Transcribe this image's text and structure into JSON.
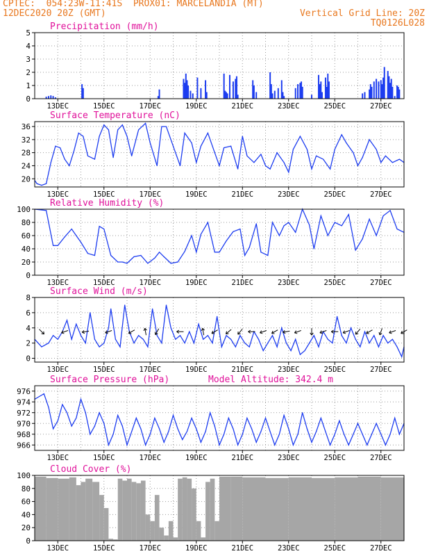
{
  "header": {
    "line1_left": "CPTEC:  054:23W-11:41S  PROX01: MARCELANDIA (MT)",
    "line2_left": "12DEC2020 20Z (GMT)",
    "line2_right": "Vertical Grid Line: 20Z",
    "line3_right": "TQ0126L028"
  },
  "colors": {
    "header": "#e8771e",
    "title": "#e0109a",
    "series": "#1c3cf0",
    "cloud": "#a6a6a6",
    "wind_arrow": "#000000"
  },
  "model_altitude": "Model Altitude: 342.4 m",
  "x_ticks": [
    "13DEC",
    "15DEC",
    "17DEC",
    "19DEC",
    "21DEC",
    "23DEC",
    "25DEC",
    "27DEC"
  ],
  "chart_data": [
    {
      "id": "precip",
      "type": "bar",
      "title": "Precipitation (mm/h)",
      "ylim": [
        0,
        5
      ],
      "yticks": [
        "0",
        "1",
        "2",
        "3",
        "4",
        "5"
      ],
      "x_days": [
        0.5,
        0.6,
        0.7,
        0.8,
        0.9,
        2.05,
        2.1,
        5.35,
        5.4,
        6.45,
        6.5,
        6.55,
        6.6,
        6.65,
        6.75,
        6.85,
        7.05,
        7.2,
        7.4,
        7.45,
        8.2,
        8.25,
        8.3,
        8.35,
        8.45,
        8.6,
        8.7,
        8.75,
        8.8,
        9.45,
        9.5,
        9.6,
        10.2,
        10.25,
        10.3,
        10.4,
        10.55,
        10.7,
        10.75,
        10.8,
        11.3,
        11.4,
        11.5,
        11.55,
        11.6,
        12.0,
        12.3,
        12.35,
        12.4,
        12.45,
        12.6,
        12.65,
        12.7,
        12.75,
        14.2,
        14.3,
        14.5,
        14.55,
        14.6,
        14.7,
        14.8,
        14.9,
        15.0,
        15.05,
        15.1,
        15.15,
        15.3,
        15.35,
        15.4,
        15.45,
        15.5,
        15.6,
        15.7,
        15.75,
        15.8
      ],
      "values": [
        0.15,
        0.2,
        0.25,
        0.2,
        0.1,
        1.1,
        0.8,
        0.2,
        0.7,
        1.5,
        1.2,
        1.9,
        1.4,
        1.0,
        0.6,
        0.4,
        1.6,
        0.8,
        1.4,
        0.5,
        1.9,
        0.6,
        0.5,
        0.4,
        1.8,
        1.3,
        1.5,
        1.7,
        0.3,
        1.4,
        1.0,
        0.5,
        2.0,
        1.1,
        0.4,
        0.6,
        0.8,
        1.4,
        0.5,
        0.2,
        0.8,
        1.1,
        1.2,
        1.3,
        0.9,
        0.3,
        1.8,
        1.1,
        1.3,
        0.5,
        1.6,
        0.9,
        1.9,
        1.3,
        0.4,
        0.5,
        0.7,
        1.1,
        0.9,
        1.3,
        1.5,
        1.3,
        1.4,
        1.1,
        1.6,
        2.4,
        2.1,
        1.7,
        1.2,
        1.5,
        0.9,
        0.2,
        1.0,
        0.9,
        0.7
      ]
    },
    {
      "id": "temp",
      "type": "line",
      "title": "Surface Temperature (nC)",
      "ylim": [
        17.5,
        37.5
      ],
      "yticks": [
        "20",
        "24",
        "28",
        "32",
        "36"
      ],
      "x_days": [
        0,
        0.1,
        0.3,
        0.5,
        0.7,
        0.9,
        1.1,
        1.3,
        1.5,
        1.7,
        1.9,
        2.1,
        2.3,
        2.6,
        2.8,
        3.0,
        3.2,
        3.4,
        3.6,
        3.8,
        4.0,
        4.2,
        4.5,
        4.8,
        5.0,
        5.3,
        5.5,
        5.7,
        6.0,
        6.3,
        6.5,
        6.8,
        7.0,
        7.2,
        7.5,
        7.8,
        8.0,
        8.2,
        8.5,
        8.8,
        9.0,
        9.2,
        9.5,
        9.8,
        10.0,
        10.2,
        10.5,
        10.8,
        11.0,
        11.2,
        11.5,
        11.8,
        12.0,
        12.2,
        12.5,
        12.8,
        13.0,
        13.3,
        13.5,
        13.8,
        14.0,
        14.2,
        14.5,
        14.8,
        15.0,
        15.2,
        15.5,
        15.8,
        16.0
      ],
      "values": [
        19.5,
        18.5,
        18.0,
        18.5,
        25.0,
        30.0,
        29.5,
        26.0,
        24.0,
        28.5,
        34.0,
        33.0,
        27.0,
        26.0,
        33.0,
        36.5,
        35.0,
        26.5,
        35.0,
        36.5,
        33.0,
        27.0,
        35.0,
        37.0,
        31.0,
        24.0,
        36.0,
        36.0,
        30.0,
        24.0,
        34.0,
        31.0,
        25.0,
        30.0,
        34.0,
        28.0,
        24.0,
        29.5,
        30.0,
        23.0,
        33.0,
        27.0,
        25.0,
        27.5,
        24.0,
        23.0,
        28.0,
        25.0,
        22.0,
        29.0,
        33.0,
        29.0,
        23.0,
        27.0,
        26.0,
        23.0,
        29.0,
        33.5,
        31.0,
        28.0,
        24.0,
        26.5,
        32.0,
        29.0,
        25.0,
        27.0,
        25.0,
        26.0,
        25.0
      ]
    },
    {
      "id": "rh",
      "type": "line",
      "title": "Relative Humidity (%)",
      "ylim": [
        0,
        100
      ],
      "yticks": [
        "0",
        "20",
        "40",
        "60",
        "80",
        "100"
      ],
      "x_days": [
        0,
        0.5,
        0.8,
        1.0,
        1.3,
        1.6,
        1.8,
        2.0,
        2.3,
        2.6,
        2.8,
        3.0,
        3.3,
        3.6,
        3.8,
        4.0,
        4.3,
        4.6,
        4.9,
        5.2,
        5.4,
        5.6,
        5.9,
        6.2,
        6.5,
        6.8,
        7.0,
        7.2,
        7.5,
        7.8,
        8.0,
        8.3,
        8.6,
        8.9,
        9.1,
        9.3,
        9.6,
        9.8,
        10.1,
        10.3,
        10.6,
        10.8,
        11.0,
        11.3,
        11.6,
        11.9,
        12.1,
        12.4,
        12.7,
        13.0,
        13.3,
        13.6,
        13.9,
        14.2,
        14.5,
        14.8,
        15.1,
        15.4,
        15.7,
        16.0
      ],
      "values": [
        100,
        98,
        45,
        45,
        58,
        70,
        60,
        50,
        33,
        30,
        74,
        70,
        30,
        20,
        20,
        18,
        28,
        30,
        18,
        26,
        35,
        28,
        18,
        20,
        36,
        60,
        35,
        62,
        80,
        35,
        35,
        52,
        66,
        70,
        30,
        42,
        78,
        35,
        30,
        80,
        60,
        75,
        80,
        65,
        100,
        76,
        40,
        90,
        60,
        80,
        75,
        92,
        38,
        55,
        85,
        60,
        90,
        98,
        70,
        65
      ]
    },
    {
      "id": "wind",
      "type": "line",
      "title": "Surface Wind (m/s)",
      "ylim": [
        -0.5,
        8
      ],
      "yticks": [
        "0",
        "2",
        "4",
        "6",
        "8"
      ],
      "x_days": [
        0,
        0.3,
        0.6,
        0.8,
        1.0,
        1.2,
        1.4,
        1.6,
        1.8,
        2.0,
        2.2,
        2.4,
        2.6,
        2.8,
        3.0,
        3.2,
        3.3,
        3.5,
        3.7,
        3.9,
        4.1,
        4.3,
        4.5,
        4.7,
        4.9,
        5.1,
        5.3,
        5.5,
        5.7,
        5.9,
        6.1,
        6.3,
        6.5,
        6.7,
        6.9,
        7.1,
        7.3,
        7.5,
        7.7,
        7.9,
        8.1,
        8.3,
        8.5,
        8.7,
        8.9,
        9.1,
        9.3,
        9.5,
        9.7,
        9.9,
        10.1,
        10.3,
        10.5,
        10.7,
        10.9,
        11.1,
        11.3,
        11.5,
        11.7,
        11.9,
        12.1,
        12.3,
        12.5,
        12.7,
        12.9,
        13.1,
        13.3,
        13.5,
        13.7,
        13.9,
        14.1,
        14.3,
        14.5,
        14.7,
        14.9,
        15.1,
        15.3,
        15.5,
        15.7,
        15.9,
        16.0
      ],
      "values": [
        2.5,
        1.5,
        2.0,
        3.0,
        2.5,
        3.5,
        5.0,
        2.5,
        4.5,
        3.0,
        2.0,
        6.0,
        2.5,
        1.5,
        2.0,
        4.0,
        6.5,
        2.5,
        1.5,
        7.0,
        3.5,
        2.0,
        3.0,
        2.5,
        1.5,
        6.5,
        3.0,
        2.0,
        7.0,
        4.0,
        2.5,
        3.0,
        2.0,
        3.5,
        2.0,
        4.5,
        2.5,
        3.0,
        2.0,
        5.5,
        1.5,
        3.0,
        2.5,
        1.5,
        3.0,
        2.0,
        1.5,
        3.5,
        2.5,
        1.0,
        2.0,
        3.0,
        1.5,
        4.0,
        2.0,
        1.0,
        2.5,
        0.5,
        1.0,
        2.0,
        3.0,
        1.5,
        3.5,
        2.5,
        2.0,
        5.5,
        3.0,
        2.0,
        4.0,
        2.5,
        1.5,
        3.5,
        2.0,
        3.0,
        1.5,
        3.0,
        2.0,
        2.5,
        1.5,
        0.2,
        1.5
      ],
      "arrow_x_days": [
        0.3,
        1.3,
        2.2,
        3.2,
        4.2,
        4.8,
        5.3,
        6.3,
        7.3,
        7.8,
        8.4,
        8.9,
        9.4,
        9.9,
        10.4,
        10.9,
        11.4,
        12.0,
        12.5,
        13.0,
        13.5,
        14.0,
        14.5,
        15.0,
        15.5,
        16.0
      ],
      "arrow_dir_deg": [
        315,
        200,
        190,
        200,
        210,
        100,
        240,
        180,
        100,
        210,
        220,
        230,
        180,
        200,
        210,
        190,
        200,
        270,
        200,
        180,
        200,
        230,
        210,
        250,
        200,
        210
      ]
    },
    {
      "id": "pres",
      "type": "line",
      "title": "Surface Pressure (hPa)",
      "ylim": [
        965,
        977
      ],
      "yticks": [
        "966",
        "968",
        "970",
        "972",
        "974",
        "976"
      ],
      "x_days": [
        0,
        0.2,
        0.4,
        0.6,
        0.8,
        1.0,
        1.2,
        1.4,
        1.6,
        1.8,
        2.0,
        2.2,
        2.4,
        2.6,
        2.8,
        3.0,
        3.2,
        3.4,
        3.6,
        3.8,
        4.0,
        4.2,
        4.4,
        4.6,
        4.8,
        5.0,
        5.2,
        5.4,
        5.6,
        5.8,
        6.0,
        6.2,
        6.4,
        6.6,
        6.8,
        7.0,
        7.2,
        7.4,
        7.6,
        7.8,
        8.0,
        8.2,
        8.4,
        8.6,
        8.8,
        9.0,
        9.2,
        9.4,
        9.6,
        9.8,
        10.0,
        10.2,
        10.4,
        10.6,
        10.8,
        11.0,
        11.2,
        11.4,
        11.6,
        11.8,
        12.0,
        12.2,
        12.4,
        12.6,
        12.8,
        13.0,
        13.2,
        13.4,
        13.6,
        13.8,
        14.0,
        14.2,
        14.4,
        14.6,
        14.8,
        15.0,
        15.2,
        15.4,
        15.6,
        15.8,
        16.0
      ],
      "values": [
        974.5,
        975.0,
        975.5,
        973.0,
        969.0,
        970.5,
        973.5,
        972.0,
        969.5,
        971.0,
        974.5,
        972.0,
        968.0,
        969.5,
        972.0,
        970.0,
        966.0,
        968.0,
        971.5,
        969.5,
        966.0,
        968.5,
        971.0,
        969.0,
        966.0,
        968.0,
        971.0,
        969.0,
        966.5,
        968.5,
        971.5,
        969.0,
        967.0,
        968.5,
        971.0,
        969.0,
        966.5,
        968.5,
        972.0,
        969.5,
        966.0,
        968.0,
        971.0,
        969.0,
        966.0,
        968.0,
        971.0,
        969.0,
        966.5,
        968.5,
        971.0,
        968.5,
        966.0,
        968.0,
        971.5,
        969.0,
        966.0,
        968.0,
        972.0,
        969.0,
        966.5,
        968.5,
        971.0,
        968.5,
        966.0,
        968.0,
        970.5,
        968.0,
        966.0,
        968.0,
        970.0,
        968.0,
        966.0,
        968.0,
        970.0,
        968.0,
        966.0,
        968.0,
        971.0,
        968.0,
        970.0
      ]
    },
    {
      "id": "cloud",
      "type": "area",
      "title": "Cloud Cover (%)",
      "ylim": [
        0,
        100
      ],
      "yticks": [
        "0",
        "20",
        "40",
        "60",
        "80",
        "100"
      ],
      "x_days": [
        0,
        0.5,
        1.0,
        1.5,
        1.8,
        2.0,
        2.2,
        2.5,
        2.8,
        3.0,
        3.2,
        3.4,
        3.6,
        3.8,
        4.0,
        4.2,
        4.4,
        4.6,
        4.8,
        5.0,
        5.2,
        5.4,
        5.6,
        5.8,
        6.0,
        6.2,
        6.4,
        6.6,
        6.8,
        7.0,
        7.2,
        7.4,
        7.6,
        7.8,
        8.0,
        8.5,
        9.0,
        10.0,
        11.0,
        12.0,
        13.0,
        14.0,
        15.0,
        16.0
      ],
      "values": [
        98,
        96,
        95,
        97,
        85,
        90,
        95,
        90,
        70,
        50,
        3,
        2,
        95,
        92,
        95,
        90,
        88,
        92,
        40,
        30,
        70,
        20,
        8,
        30,
        5,
        95,
        97,
        95,
        80,
        30,
        5,
        90,
        95,
        30,
        98,
        98,
        97,
        96,
        97,
        96,
        97,
        98,
        97,
        98
      ]
    }
  ]
}
